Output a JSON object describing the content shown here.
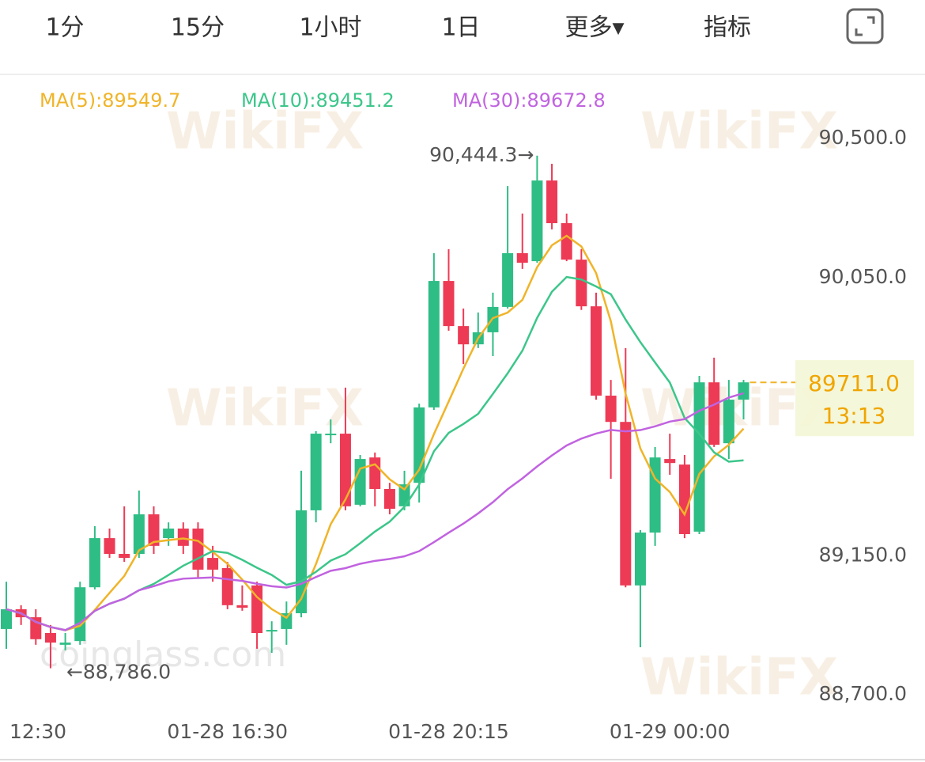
{
  "tabs": [
    "1分",
    "15分",
    "1小时",
    "1日",
    "更多▾",
    "指标"
  ],
  "active_tab": 1,
  "watermarks": [
    "WikiFX",
    "coinglass.com"
  ],
  "chart_data": {
    "type": "candlestick",
    "ma": [
      {
        "label": "MA(5):89549.7",
        "color": "#f0b429"
      },
      {
        "label": "MA(10):89451.2",
        "color": "#3cc68a"
      },
      {
        "label": "MA(30):89672.8",
        "color": "#c163e0"
      }
    ],
    "categories": [
      "12:30",
      null,
      null,
      null,
      null,
      null,
      null,
      null,
      null,
      null,
      null,
      null,
      null,
      null,
      null,
      "01-28 16:30",
      null,
      null,
      null,
      null,
      null,
      null,
      null,
      null,
      null,
      null,
      null,
      null,
      null,
      null,
      "01-28 20:15",
      null,
      null,
      null,
      null,
      null,
      null,
      null,
      null,
      null,
      null,
      null,
      null,
      null,
      null,
      "01-29 00:00",
      null,
      null,
      null,
      null,
      null
    ],
    "open": [
      88913,
      88977,
      88951,
      88900,
      88862,
      88874,
      89048,
      89207,
      89156,
      89156,
      89284,
      89207,
      89238,
      89238,
      89143,
      89110,
      88990,
      89054,
      88905,
      88913,
      88964,
      89297,
      89540,
      89545,
      89315,
      89468,
      89366,
      89310,
      89386,
      89630,
      90039,
      89893,
      89834,
      89873,
      89955,
      90129,
      90103,
      90364,
      90226,
      90108,
      89957,
      89668,
      89583,
      89054,
      89225,
      89463,
      89445,
      89228,
      89711,
      89514,
      89655
    ],
    "high": [
      89066,
      88990,
      88977,
      88926,
      88900,
      89066,
      89246,
      89238,
      89310,
      89361,
      89310,
      89258,
      89258,
      89258,
      89182,
      89130,
      89054,
      89066,
      88938,
      89002,
      89425,
      89553,
      89591,
      89694,
      89476,
      89484,
      89386,
      89425,
      89642,
      90129,
      90142,
      89950,
      89937,
      90001,
      90346,
      90257,
      90444.3,
      90418,
      90257,
      90142,
      90001,
      89719,
      89822,
      89233,
      89502,
      89545,
      89476,
      89732,
      89791,
      89719,
      89719
    ],
    "low": [
      88849,
      88926,
      88862,
      88786,
      88844,
      88862,
      89041,
      89143,
      89130,
      89143,
      89156,
      89182,
      89156,
      89079,
      89066,
      88977,
      88972,
      88849,
      88836,
      88862,
      88951,
      89258,
      89514,
      89297,
      89310,
      89310,
      89284,
      89297,
      89322,
      89622,
      89878,
      89770,
      89822,
      89796,
      89950,
      90078,
      90098,
      90206,
      90103,
      89945,
      89655,
      89399,
      89048,
      88854,
      89182,
      89412,
      89207,
      89220,
      89502,
      89463,
      89591
    ],
    "close": [
      88977,
      88951,
      88880,
      88869,
      88869,
      89048,
      89207,
      89156,
      89143,
      89284,
      89182,
      89238,
      89182,
      89105,
      89105,
      88990,
      88982,
      88900,
      88910,
      88964,
      89297,
      89545,
      89545,
      89310,
      89463,
      89366,
      89302,
      89381,
      89630,
      90039,
      89893,
      89834,
      89873,
      89955,
      90129,
      90098,
      90364,
      90226,
      90108,
      89957,
      89668,
      89583,
      89054,
      89225,
      89468,
      89450,
      89220,
      89711,
      89509,
      89655,
      89711
    ],
    "up_color": "#2ebd85",
    "down_color": "#ed3a55",
    "ylim": [
      88644,
      90692
    ],
    "yticks": [
      {
        "value": 90500,
        "label": "90,500.0"
      },
      {
        "value": 90050,
        "label": "90,050.0"
      },
      {
        "value": 89150,
        "label": "89,150.0"
      },
      {
        "value": 88700,
        "label": "88,700.0"
      }
    ],
    "high_label": "90,444.3→",
    "low_label": "←88,786.0",
    "last_price": {
      "value": 89711.0,
      "label": "89711.0",
      "countdown": "13:13"
    }
  }
}
